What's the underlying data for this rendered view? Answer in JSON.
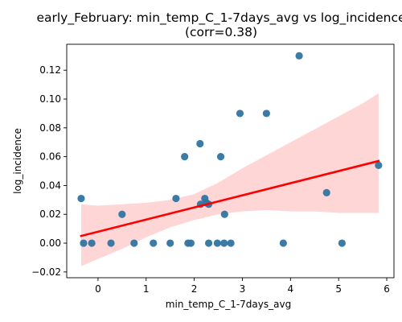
{
  "chart_data": {
    "type": "scatter",
    "title_line1": "early_February: min_temp_C_1-7days_avg vs log_incidence",
    "title_line2": "(corr=0.38)",
    "xlabel": "min_temp_C_1-7days_avg",
    "ylabel": "log_incidence",
    "xlim": [
      -0.65,
      6.15
    ],
    "ylim": [
      -0.024,
      0.138
    ],
    "x_ticks": [
      0,
      1,
      2,
      3,
      4,
      5,
      6
    ],
    "y_ticks": [
      -0.02,
      0.0,
      0.02,
      0.04,
      0.06,
      0.08,
      0.1,
      0.12
    ],
    "y_tick_labels": [
      "−0.02",
      "0.00",
      "0.02",
      "0.04",
      "0.06",
      "0.08",
      "0.10",
      "0.12"
    ],
    "grid": false,
    "points": [
      {
        "x": -0.35,
        "y": 0.031
      },
      {
        "x": -0.3,
        "y": 0.0
      },
      {
        "x": -0.13,
        "y": 0.0
      },
      {
        "x": 0.27,
        "y": 0.0
      },
      {
        "x": 0.5,
        "y": 0.02
      },
      {
        "x": 0.75,
        "y": 0.0
      },
      {
        "x": 1.15,
        "y": 0.0
      },
      {
        "x": 1.5,
        "y": 0.0
      },
      {
        "x": 1.62,
        "y": 0.031
      },
      {
        "x": 1.8,
        "y": 0.06
      },
      {
        "x": 1.87,
        "y": 0.0
      },
      {
        "x": 1.93,
        "y": 0.0
      },
      {
        "x": 2.12,
        "y": 0.069
      },
      {
        "x": 2.13,
        "y": 0.027
      },
      {
        "x": 2.22,
        "y": 0.031
      },
      {
        "x": 2.25,
        "y": 0.028
      },
      {
        "x": 2.3,
        "y": 0.027
      },
      {
        "x": 2.3,
        "y": 0.0
      },
      {
        "x": 2.48,
        "y": 0.0
      },
      {
        "x": 2.55,
        "y": 0.06
      },
      {
        "x": 2.62,
        "y": 0.0
      },
      {
        "x": 2.63,
        "y": 0.02
      },
      {
        "x": 2.76,
        "y": 0.0
      },
      {
        "x": 2.95,
        "y": 0.09
      },
      {
        "x": 3.5,
        "y": 0.09
      },
      {
        "x": 3.85,
        "y": 0.0
      },
      {
        "x": 4.18,
        "y": 0.13
      },
      {
        "x": 4.75,
        "y": 0.035
      },
      {
        "x": 5.07,
        "y": 0.0
      },
      {
        "x": 5.83,
        "y": 0.054
      }
    ],
    "regression": {
      "x": [
        -0.35,
        5.83
      ],
      "y": [
        0.005,
        0.057
      ]
    },
    "confidence_band": {
      "x": [
        -0.35,
        0.0,
        0.5,
        1.0,
        1.5,
        2.0,
        2.5,
        3.0,
        3.5,
        4.0,
        4.5,
        5.0,
        5.5,
        5.83
      ],
      "upper": [
        0.027,
        0.026,
        0.027,
        0.028,
        0.03,
        0.034,
        0.042,
        0.052,
        0.061,
        0.07,
        0.079,
        0.088,
        0.097,
        0.104
      ],
      "lower": [
        -0.016,
        -0.011,
        -0.004,
        0.004,
        0.011,
        0.016,
        0.02,
        0.022,
        0.023,
        0.022,
        0.022,
        0.021,
        0.021,
        0.021
      ]
    },
    "colors": {
      "points": "#3274a1",
      "regression_line": "#ff0000",
      "band": "#ffd6d6"
    }
  }
}
